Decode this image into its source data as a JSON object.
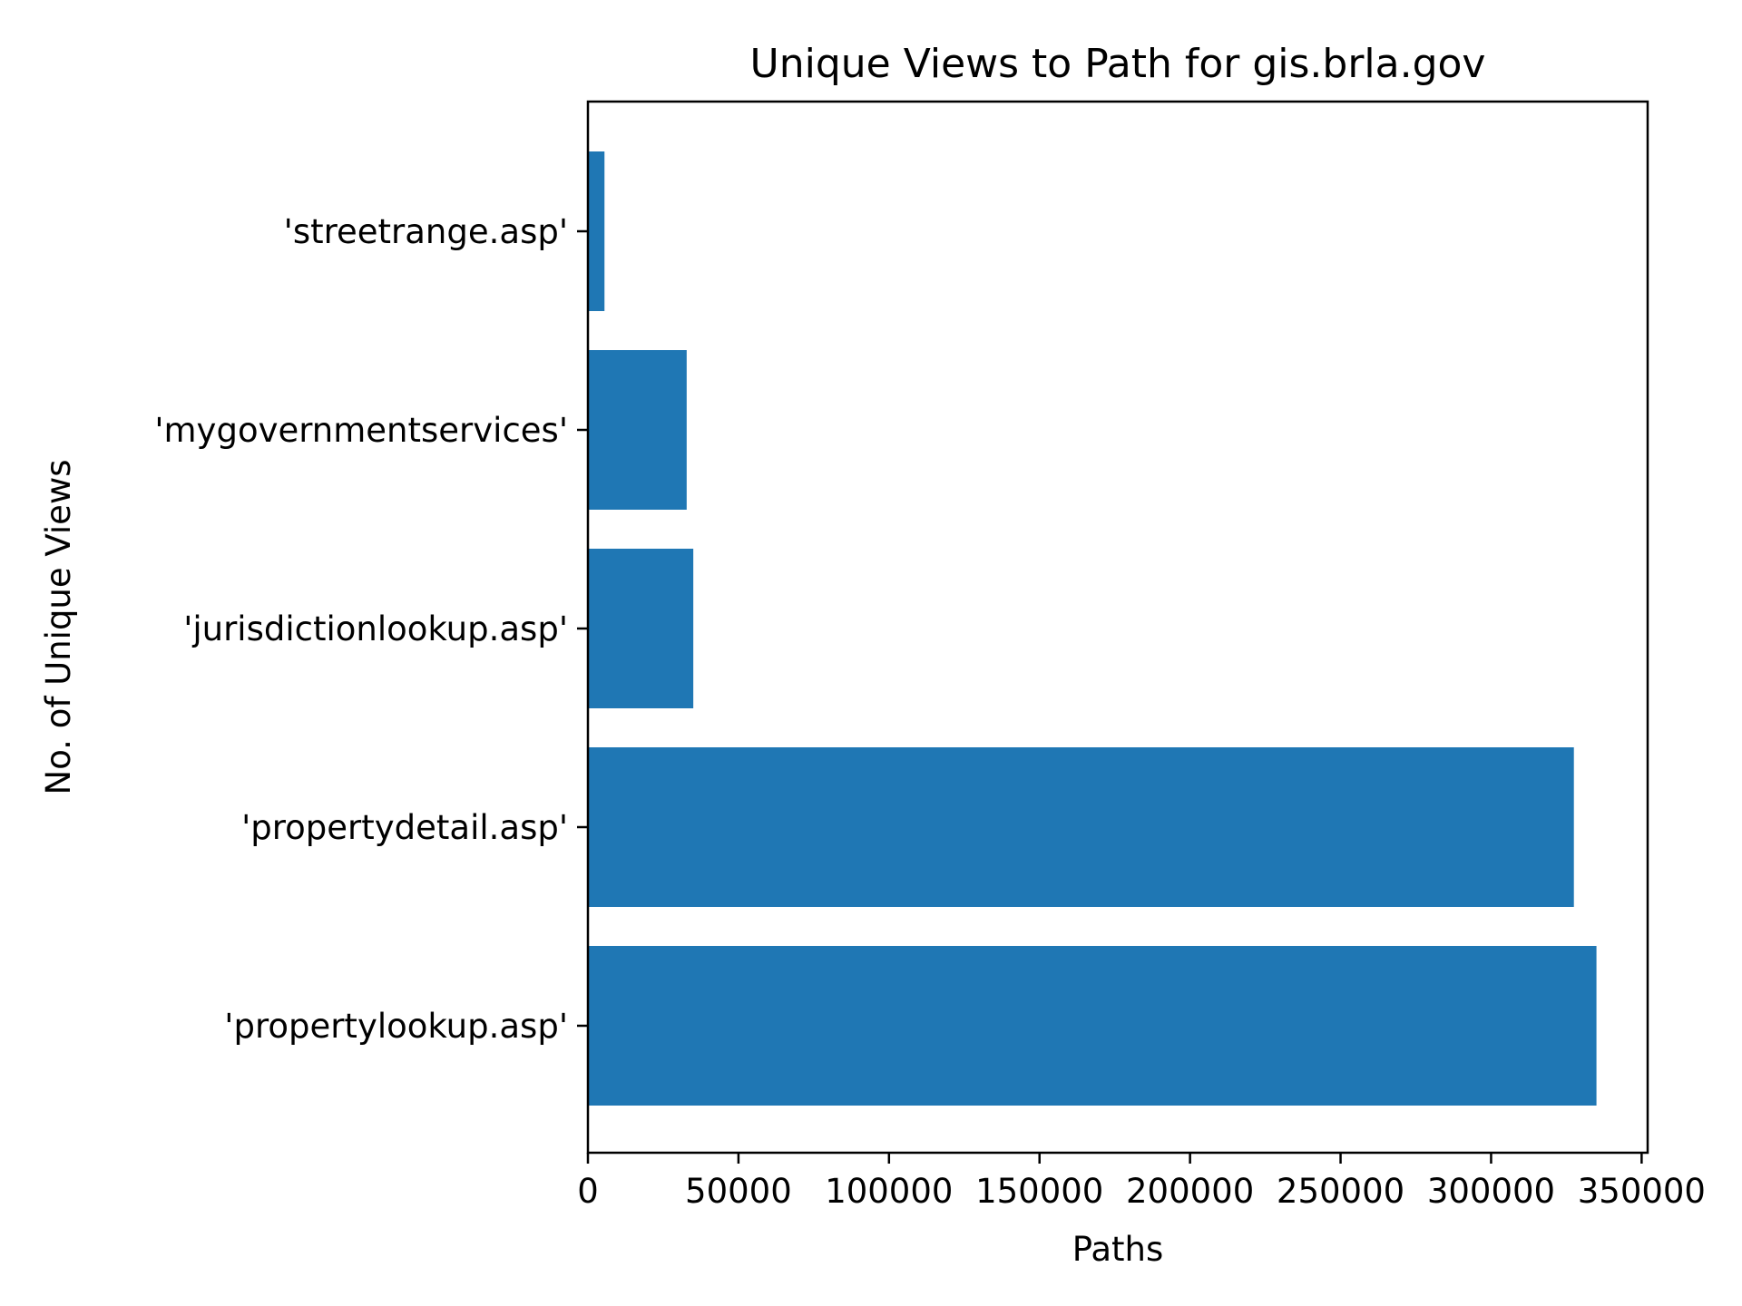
{
  "chart_data": {
    "type": "bar",
    "orientation": "horizontal",
    "title": "Unique Views to Path for gis.brla.gov",
    "xlabel": "Paths",
    "ylabel": "No. of Unique Views",
    "categories": [
      "'propertylookup.asp'",
      "'propertydetail.asp'",
      "'jurisdictionlookup.asp'",
      "'mygovernmentservices'",
      "'streetrange.asp'"
    ],
    "values": [
      335000,
      327500,
      35000,
      32800,
      5500
    ],
    "xlim": [
      0,
      352000
    ],
    "xticks": [
      0,
      50000,
      100000,
      150000,
      200000,
      250000,
      300000,
      350000
    ],
    "xtick_labels": [
      "0",
      "50000",
      "100000",
      "150000",
      "200000",
      "250000",
      "300000",
      "350000"
    ],
    "bar_color": "#1f77b4",
    "grid": false,
    "legend": false
  }
}
